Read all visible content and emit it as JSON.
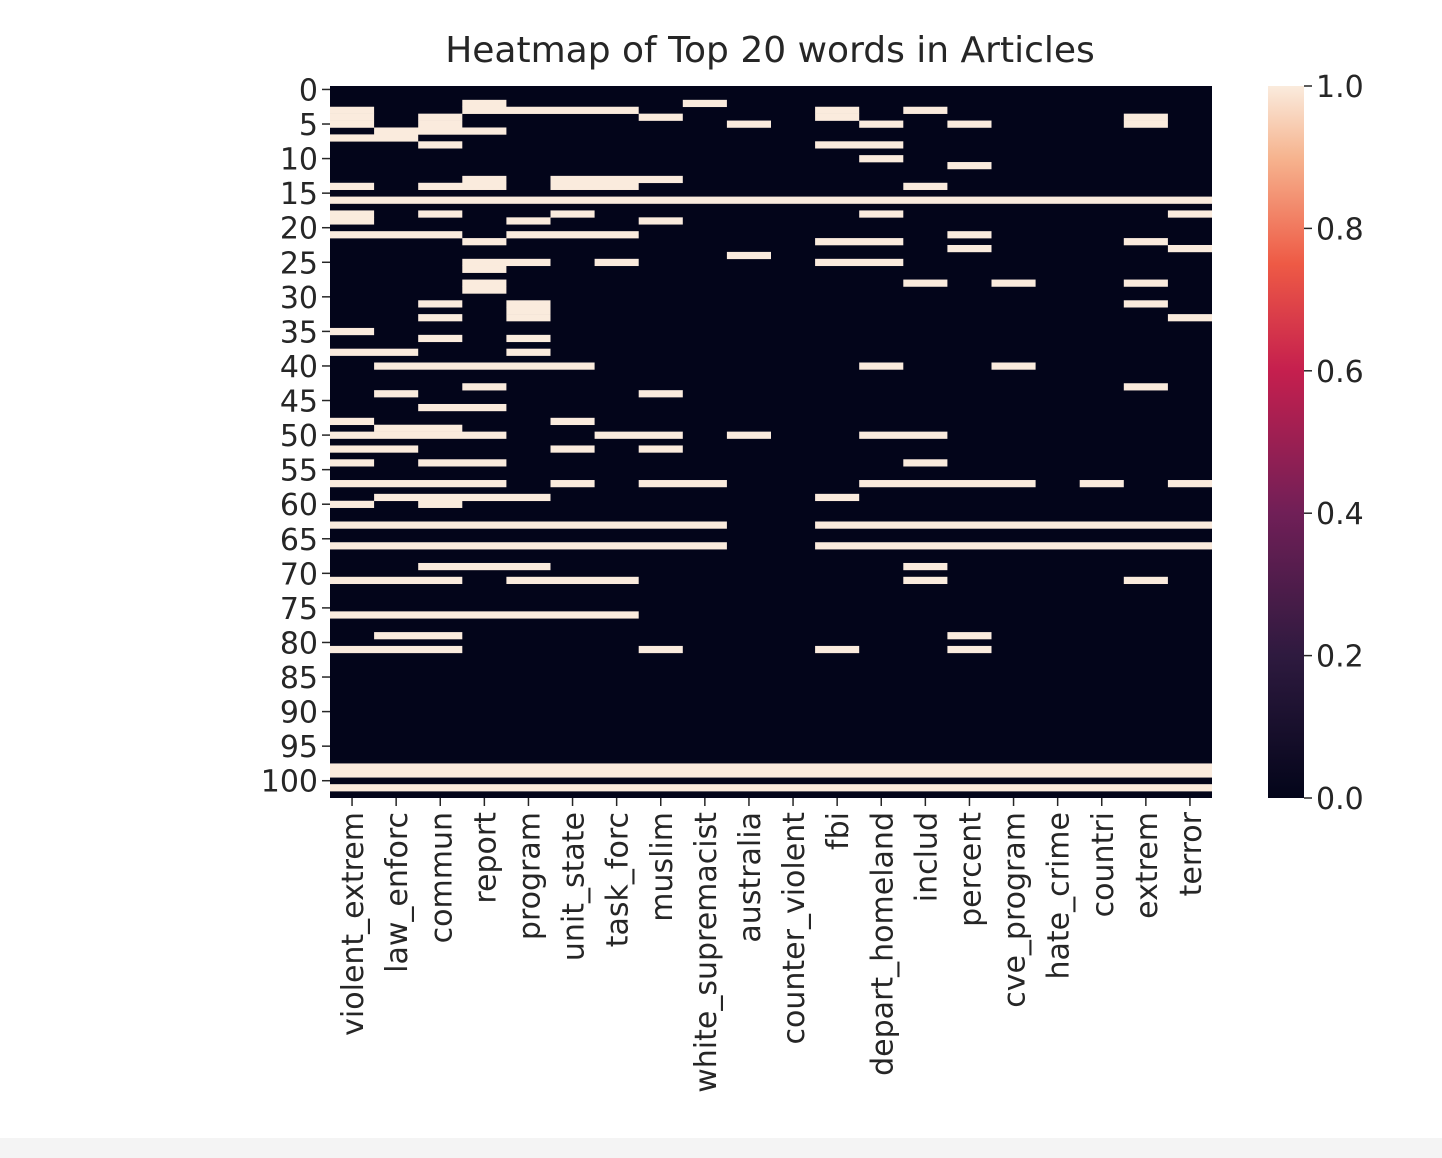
{
  "chart_data": {
    "type": "heatmap",
    "title": "Heatmap of Top 20 words in Articles",
    "xlabel": "",
    "ylabel": "",
    "columns": [
      "violent_extrem",
      "law_enforc",
      "commun",
      "report",
      "program",
      "unit_state",
      "task_forc",
      "muslim",
      "white_supremacist",
      "australia",
      "counter_violent",
      "fbi",
      "depart_homeland",
      "includ",
      "percent",
      "cve_program",
      "hate_crime",
      "countri",
      "extrem",
      "terror"
    ],
    "row_count": 103,
    "yticks": [
      0,
      5,
      10,
      15,
      20,
      25,
      30,
      35,
      40,
      45,
      50,
      55,
      60,
      65,
      70,
      75,
      80,
      85,
      90,
      95,
      100
    ],
    "colorbar": {
      "min": 0.0,
      "max": 1.0,
      "ticks": [
        "0.0",
        "0.2",
        "0.4",
        "0.6",
        "0.8",
        "1.0"
      ]
    },
    "colors": {
      "low": "#03051a",
      "mid_low": "#701f57",
      "mid": "#e13342",
      "mid_high": "#f6b48f",
      "high": "#faebdd"
    },
    "grid": false,
    "legend": "colorbar-right",
    "values": [
      "00000000000000000000",
      "00000000000000000000",
      "00010000100000000000",
      "10011110000101000000",
      "10100001000100000010",
      "10100000010010100010",
      "01110000000000000000",
      "11000000000000000000",
      "00100000000110000000",
      "00000000000000000000",
      "00000000000010000000",
      "00000000000000100000",
      "00000000000000000000",
      "00010111000000000000",
      "10110110000001000000",
      "00000000000000000000",
      "11111111111111111111",
      "00000000000000000000",
      "10100100000010000001",
      "10001001000000000000",
      "00000000000000000000",
      "11101110000000100000",
      "00010000000110000010",
      "00000000000000100001",
      "00000000010000000000",
      "00011010000110000000",
      "00010000000000000000",
      "00000000000000000000",
      "00010000000001010010",
      "00010000000000000000",
      "00000000000000000000",
      "00101000000000000010",
      "00001000000000000000",
      "00101000000000000001",
      "00000000000000000000",
      "10000000000000000000",
      "00101000000000000000",
      "00000000000000000000",
      "11001000000000000000",
      "00000000000000000000",
      "01111100000010010000",
      "00000000000000000000",
      "00000000000000000000",
      "00010000000000000010",
      "01000001000000000000",
      "00000000000000000000",
      "00110000000000000000",
      "00000000000000000000",
      "10000100000000000000",
      "01100000000000000000",
      "11110011010011000000",
      "00000000000000000000",
      "11000101000000000000",
      "00000000000000000000",
      "10110000000001000000",
      "00000000000000000000",
      "00000000000000000000",
      "11110101100011110101",
      "00000000000000000000",
      "01111000000100000000",
      "10100000000000000000",
      "00000000000000000000",
      "00000000000000000000",
      "11111111100111111111",
      "00000000000000000000",
      "00000000000000000000",
      "11111111100111111111",
      "00000000000000000000",
      "00000000000000000000",
      "00111000000001000000",
      "00000000000000000000",
      "11101110000001000010",
      "00000000000000000000",
      "00000000000000000000",
      "00000000000000000000",
      "00000000000000000000",
      "11111110000000000000",
      "00000000000000000000",
      "00000000000000000000",
      "01100000000000100000",
      "00000000000000000000",
      "11100001000100100000",
      "00000000000000000000",
      "00000000000000000000",
      "00000000000000000000",
      "00000000000000000000",
      "00000000000000000000",
      "00000000000000000000",
      "00000000000000000000",
      "00000000000000000000",
      "00000000000000000000",
      "00000000000000000000",
      "00000000000000000000",
      "00000000000000000000",
      "00000000000000000000",
      "00000000000000000000",
      "00000000000000000000",
      "00000000000000000000",
      "11111111111111111111",
      "11111111111111111111",
      "00000000000000000000",
      "11111111111111111111",
      "00000000000000000000"
    ]
  }
}
